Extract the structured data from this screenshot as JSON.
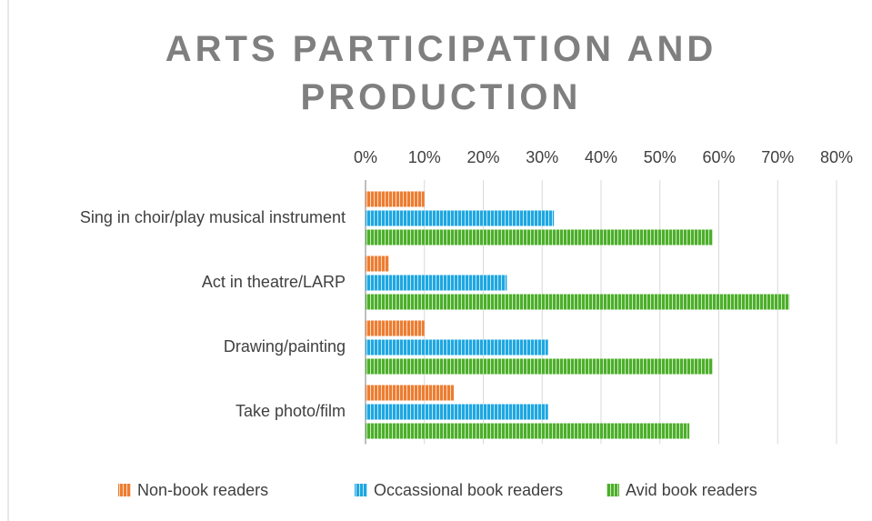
{
  "chart_data": {
    "type": "bar",
    "orientation": "horizontal",
    "title": "ARTS PARTICIPATION AND PRODUCTION",
    "categories": [
      "Sing in choir/play musical instrument",
      "Act in theatre/LARP",
      "Drawing/painting",
      "Take photo/film"
    ],
    "series": [
      {
        "name": "Non-book readers",
        "color": "#ed7d31",
        "values": [
          10,
          4,
          10,
          15
        ]
      },
      {
        "name": "Occassional book readers",
        "color": "#1ea7e1",
        "values": [
          32,
          24,
          31,
          31
        ]
      },
      {
        "name": "Avid book readers",
        "color": "#4caf2a",
        "values": [
          59,
          72,
          59,
          55
        ]
      }
    ],
    "xlim": [
      0,
      80
    ],
    "xticks": [
      {
        "value": 0,
        "label": "0%"
      },
      {
        "value": 10,
        "label": "10%"
      },
      {
        "value": 20,
        "label": "20%"
      },
      {
        "value": 30,
        "label": "30%"
      },
      {
        "value": 40,
        "label": "40%"
      },
      {
        "value": 50,
        "label": "50%"
      },
      {
        "value": 60,
        "label": "60%"
      },
      {
        "value": 70,
        "label": "70%"
      },
      {
        "value": 80,
        "label": "80%"
      }
    ],
    "grid": true,
    "legend": "bottom"
  }
}
